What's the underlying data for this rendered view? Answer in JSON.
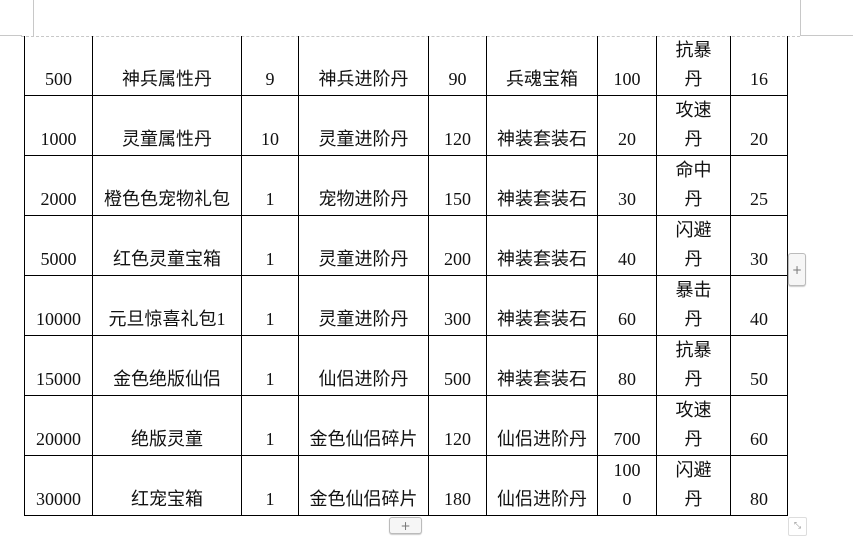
{
  "table": {
    "rows": [
      [
        "500",
        "神兵属性丹",
        "9",
        "神兵进阶丹",
        "90",
        "兵魂宝箱",
        "100",
        "抗暴丹",
        "16"
      ],
      [
        "1000",
        "灵童属性丹",
        "10",
        "灵童进阶丹",
        "120",
        "神装套装石",
        "20",
        "攻速丹",
        "20"
      ],
      [
        "2000",
        "橙色色宠物礼包",
        "1",
        "宠物进阶丹",
        "150",
        "神装套装石",
        "30",
        "命中丹",
        "25"
      ],
      [
        "5000",
        "红色灵童宝箱",
        "1",
        "灵童进阶丹",
        "200",
        "神装套装石",
        "40",
        "闪避丹",
        "30"
      ],
      [
        "10000",
        "元旦惊喜礼包1",
        "1",
        "灵童进阶丹",
        "300",
        "神装套装石",
        "60",
        "暴击丹",
        "40"
      ],
      [
        "15000",
        "金色绝版仙侣",
        "1",
        "仙侣进阶丹",
        "500",
        "神装套装石",
        "80",
        "抗暴丹",
        "50"
      ],
      [
        "20000",
        "绝版灵童",
        "1",
        "金色仙侣碎片",
        "120",
        "仙侣进阶丹",
        "700",
        "攻速丹",
        "60"
      ],
      [
        "30000",
        "红宠宝箱",
        "1",
        "金色仙侣碎片",
        "180",
        "仙侣进阶丹",
        "1000",
        "闪避丹",
        "80"
      ]
    ]
  },
  "controls": {
    "add_row_icon": "plus-icon",
    "add_col_icon": "plus-icon",
    "resize_icon": "resize-diagonal-icon",
    "plus": "+",
    "resize": "⤡"
  }
}
